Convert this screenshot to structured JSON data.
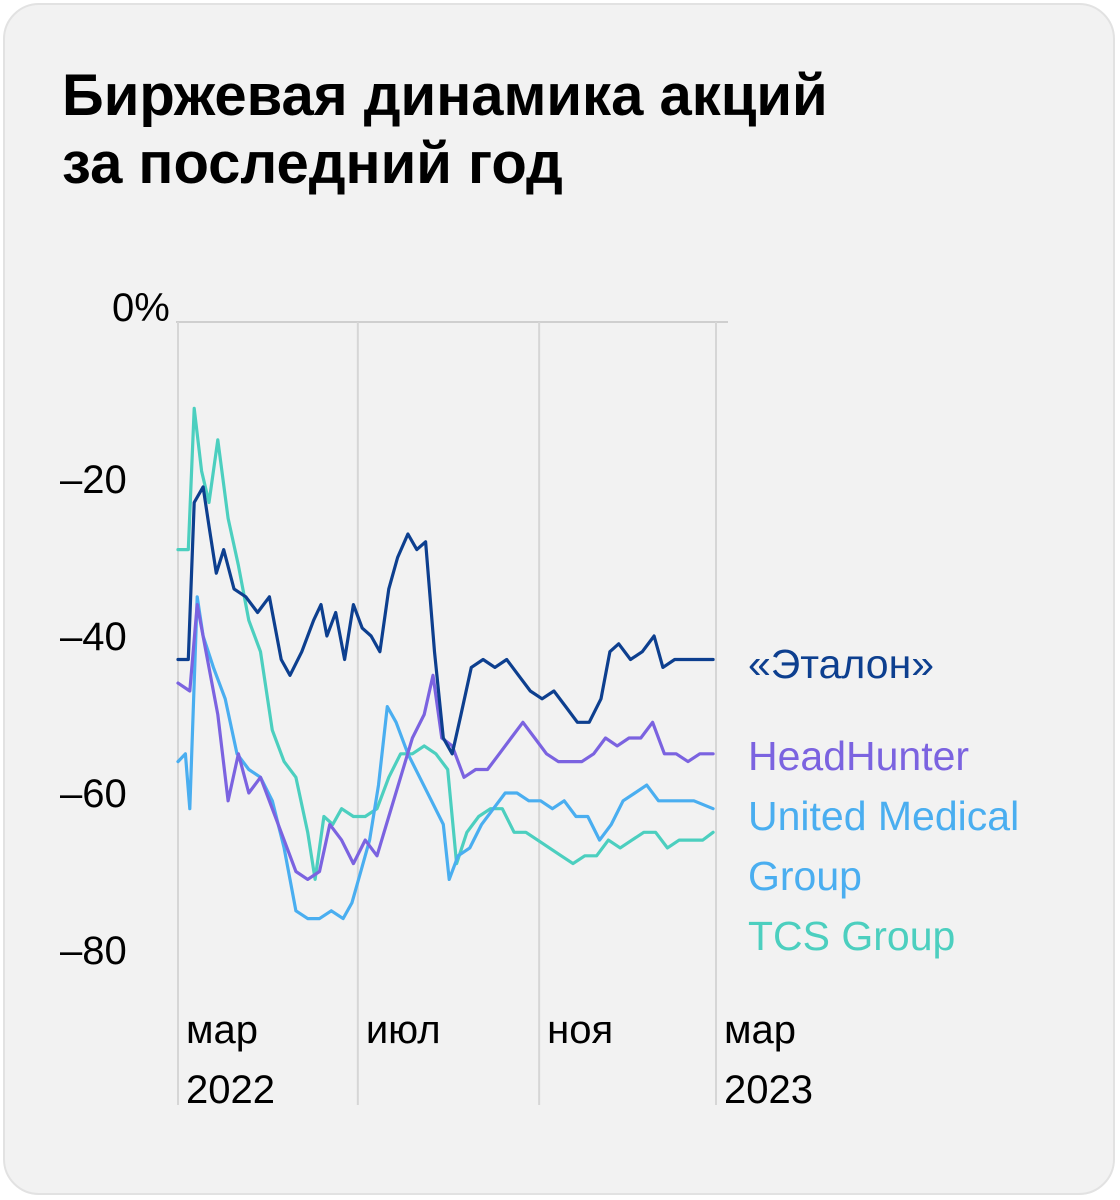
{
  "title": {
    "line1": "Биржевая динамика акций",
    "line2": "за последний год"
  },
  "chart_data": {
    "type": "line",
    "title": "Биржевая динамика акций за последний год",
    "ylabel": "",
    "xlabel": "",
    "ylim": [
      -90,
      0
    ],
    "y_ticks": [
      {
        "value": 0,
        "label": "0%"
      },
      {
        "value": -20,
        "label": "–20"
      },
      {
        "value": -40,
        "label": "–40"
      },
      {
        "value": -60,
        "label": "–60"
      },
      {
        "value": -80,
        "label": "–80"
      }
    ],
    "x_ticks": [
      {
        "date": "2022-03-01",
        "lines": [
          "мар",
          "2022"
        ]
      },
      {
        "date": "2022-07-01",
        "lines": [
          "июл",
          ""
        ]
      },
      {
        "date": "2022-11-01",
        "lines": [
          "ноя",
          ""
        ]
      },
      {
        "date": "2023-03-01",
        "lines": [
          "мар",
          "2023"
        ]
      }
    ],
    "grid": "vertical",
    "legend_position": "right, at end of lines",
    "series": [
      {
        "name": "«Эталон»",
        "legend_lines": [
          "«Эталон»"
        ],
        "color": "#0d3f8f",
        "points": [
          [
            "2022-03-01",
            -43
          ],
          [
            "2022-03-08",
            -43
          ],
          [
            "2022-03-12",
            -23
          ],
          [
            "2022-03-18",
            -21
          ],
          [
            "2022-03-22",
            -26
          ],
          [
            "2022-03-27",
            -32
          ],
          [
            "2022-04-01",
            -29
          ],
          [
            "2022-04-08",
            -34
          ],
          [
            "2022-04-16",
            -35
          ],
          [
            "2022-04-24",
            -37
          ],
          [
            "2022-05-02",
            -35
          ],
          [
            "2022-05-10",
            -43
          ],
          [
            "2022-05-16",
            -45
          ],
          [
            "2022-05-24",
            -42
          ],
          [
            "2022-06-01",
            -38
          ],
          [
            "2022-06-06",
            -36
          ],
          [
            "2022-06-10",
            -40
          ],
          [
            "2022-06-16",
            -37
          ],
          [
            "2022-06-22",
            -43
          ],
          [
            "2022-06-28",
            -36
          ],
          [
            "2022-07-04",
            -39
          ],
          [
            "2022-07-10",
            -40
          ],
          [
            "2022-07-16",
            -42
          ],
          [
            "2022-07-22",
            -34
          ],
          [
            "2022-07-28",
            -30
          ],
          [
            "2022-08-04",
            -27
          ],
          [
            "2022-08-10",
            -29
          ],
          [
            "2022-08-16",
            -28
          ],
          [
            "2022-08-22",
            -42
          ],
          [
            "2022-08-28",
            -53
          ],
          [
            "2022-09-03",
            -55
          ],
          [
            "2022-09-09",
            -50
          ],
          [
            "2022-09-16",
            -44
          ],
          [
            "2022-09-24",
            -43
          ],
          [
            "2022-10-02",
            -44
          ],
          [
            "2022-10-10",
            -43
          ],
          [
            "2022-10-18",
            -45
          ],
          [
            "2022-10-26",
            -47
          ],
          [
            "2022-11-03",
            -48
          ],
          [
            "2022-11-11",
            -47
          ],
          [
            "2022-11-19",
            -49
          ],
          [
            "2022-11-27",
            -51
          ],
          [
            "2022-12-05",
            -51
          ],
          [
            "2022-12-13",
            -48
          ],
          [
            "2022-12-19",
            -42
          ],
          [
            "2022-12-25",
            -41
          ],
          [
            "2023-01-02",
            -43
          ],
          [
            "2023-01-10",
            -42
          ],
          [
            "2023-01-18",
            -40
          ],
          [
            "2023-01-24",
            -44
          ],
          [
            "2023-02-01",
            -43
          ],
          [
            "2023-02-09",
            -43
          ],
          [
            "2023-02-17",
            -43
          ],
          [
            "2023-02-27",
            -43
          ]
        ]
      },
      {
        "name": "HeadHunter",
        "legend_lines": [
          "HeadHunter"
        ],
        "color": "#7b63e0",
        "points": [
          [
            "2022-03-01",
            -46
          ],
          [
            "2022-03-09",
            -47
          ],
          [
            "2022-03-14",
            -36
          ],
          [
            "2022-03-20",
            -42
          ],
          [
            "2022-03-28",
            -50
          ],
          [
            "2022-04-04",
            -61
          ],
          [
            "2022-04-11",
            -55
          ],
          [
            "2022-04-18",
            -60
          ],
          [
            "2022-04-26",
            -58
          ],
          [
            "2022-05-04",
            -62
          ],
          [
            "2022-05-12",
            -66
          ],
          [
            "2022-05-20",
            -70
          ],
          [
            "2022-05-28",
            -71
          ],
          [
            "2022-06-05",
            -70
          ],
          [
            "2022-06-12",
            -64
          ],
          [
            "2022-06-20",
            -66
          ],
          [
            "2022-06-28",
            -69
          ],
          [
            "2022-07-06",
            -66
          ],
          [
            "2022-07-14",
            -68
          ],
          [
            "2022-07-22",
            -63
          ],
          [
            "2022-07-30",
            -58
          ],
          [
            "2022-08-07",
            -53
          ],
          [
            "2022-08-15",
            -50
          ],
          [
            "2022-08-21",
            -45
          ],
          [
            "2022-08-27",
            -53
          ],
          [
            "2022-09-03",
            -54
          ],
          [
            "2022-09-11",
            -58
          ],
          [
            "2022-09-19",
            -57
          ],
          [
            "2022-09-27",
            -57
          ],
          [
            "2022-10-05",
            -55
          ],
          [
            "2022-10-13",
            -53
          ],
          [
            "2022-10-21",
            -51
          ],
          [
            "2022-10-29",
            -53
          ],
          [
            "2022-11-06",
            -55
          ],
          [
            "2022-11-14",
            -56
          ],
          [
            "2022-11-22",
            -56
          ],
          [
            "2022-11-30",
            -56
          ],
          [
            "2022-12-08",
            -55
          ],
          [
            "2022-12-16",
            -53
          ],
          [
            "2022-12-24",
            -54
          ],
          [
            "2023-01-01",
            -53
          ],
          [
            "2023-01-09",
            -53
          ],
          [
            "2023-01-17",
            -51
          ],
          [
            "2023-01-25",
            -55
          ],
          [
            "2023-02-02",
            -55
          ],
          [
            "2023-02-10",
            -56
          ],
          [
            "2023-02-18",
            -55
          ],
          [
            "2023-02-27",
            -55
          ]
        ]
      },
      {
        "name": "United Medical Group",
        "legend_lines": [
          "United Medical",
          "Group"
        ],
        "color": "#4aaef0",
        "points": [
          [
            "2022-03-01",
            -56
          ],
          [
            "2022-03-06",
            -55
          ],
          [
            "2022-03-09",
            -62
          ],
          [
            "2022-03-14",
            -35
          ],
          [
            "2022-03-18",
            -40
          ],
          [
            "2022-03-25",
            -44
          ],
          [
            "2022-04-02",
            -48
          ],
          [
            "2022-04-10",
            -55
          ],
          [
            "2022-04-18",
            -57
          ],
          [
            "2022-04-26",
            -58
          ],
          [
            "2022-05-04",
            -61
          ],
          [
            "2022-05-12",
            -67
          ],
          [
            "2022-05-20",
            -75
          ],
          [
            "2022-05-28",
            -76
          ],
          [
            "2022-06-05",
            -76
          ],
          [
            "2022-06-13",
            -75
          ],
          [
            "2022-06-21",
            -76
          ],
          [
            "2022-06-27",
            -74
          ],
          [
            "2022-07-03",
            -70
          ],
          [
            "2022-07-09",
            -66
          ],
          [
            "2022-07-15",
            -59
          ],
          [
            "2022-07-21",
            -49
          ],
          [
            "2022-07-27",
            -51
          ],
          [
            "2022-08-04",
            -55
          ],
          [
            "2022-08-12",
            -58
          ],
          [
            "2022-08-20",
            -61
          ],
          [
            "2022-08-28",
            -64
          ],
          [
            "2022-09-01",
            -71
          ],
          [
            "2022-09-07",
            -68
          ],
          [
            "2022-09-15",
            -67
          ],
          [
            "2022-09-23",
            -64
          ],
          [
            "2022-10-01",
            -62
          ],
          [
            "2022-10-09",
            -60
          ],
          [
            "2022-10-17",
            -60
          ],
          [
            "2022-10-25",
            -61
          ],
          [
            "2022-11-02",
            -61
          ],
          [
            "2022-11-10",
            -62
          ],
          [
            "2022-11-18",
            -61
          ],
          [
            "2022-11-26",
            -63
          ],
          [
            "2022-12-04",
            -63
          ],
          [
            "2022-12-12",
            -66
          ],
          [
            "2022-12-20",
            -64
          ],
          [
            "2022-12-28",
            -61
          ],
          [
            "2023-01-05",
            -60
          ],
          [
            "2023-01-13",
            -59
          ],
          [
            "2023-01-21",
            -61
          ],
          [
            "2023-01-29",
            -61
          ],
          [
            "2023-02-06",
            -61
          ],
          [
            "2023-02-14",
            -61
          ],
          [
            "2023-02-27",
            -62
          ]
        ]
      },
      {
        "name": "TCS Group",
        "legend_lines": [
          "TCS Group"
        ],
        "color": "#4ccfbf",
        "points": [
          [
            "2022-03-01",
            -29
          ],
          [
            "2022-03-08",
            -29
          ],
          [
            "2022-03-12",
            -11
          ],
          [
            "2022-03-17",
            -19
          ],
          [
            "2022-03-22",
            -23
          ],
          [
            "2022-03-28",
            -15
          ],
          [
            "2022-04-04",
            -25
          ],
          [
            "2022-04-11",
            -31
          ],
          [
            "2022-04-18",
            -38
          ],
          [
            "2022-04-26",
            -42
          ],
          [
            "2022-05-04",
            -52
          ],
          [
            "2022-05-12",
            -56
          ],
          [
            "2022-05-20",
            -58
          ],
          [
            "2022-05-28",
            -65
          ],
          [
            "2022-06-02",
            -71
          ],
          [
            "2022-06-08",
            -63
          ],
          [
            "2022-06-14",
            -64
          ],
          [
            "2022-06-20",
            -62
          ],
          [
            "2022-06-28",
            -63
          ],
          [
            "2022-07-06",
            -63
          ],
          [
            "2022-07-14",
            -62
          ],
          [
            "2022-07-22",
            -58
          ],
          [
            "2022-07-30",
            -55
          ],
          [
            "2022-08-07",
            -55
          ],
          [
            "2022-08-15",
            -54
          ],
          [
            "2022-08-23",
            -55
          ],
          [
            "2022-08-31",
            -57
          ],
          [
            "2022-09-06",
            -69
          ],
          [
            "2022-09-13",
            -65
          ],
          [
            "2022-09-21",
            -63
          ],
          [
            "2022-09-29",
            -62
          ],
          [
            "2022-10-07",
            -62
          ],
          [
            "2022-10-15",
            -65
          ],
          [
            "2022-10-23",
            -65
          ],
          [
            "2022-10-31",
            -66
          ],
          [
            "2022-11-08",
            -67
          ],
          [
            "2022-11-16",
            -68
          ],
          [
            "2022-11-24",
            -69
          ],
          [
            "2022-12-02",
            -68
          ],
          [
            "2022-12-10",
            -68
          ],
          [
            "2022-12-18",
            -66
          ],
          [
            "2022-12-26",
            -67
          ],
          [
            "2023-01-03",
            -66
          ],
          [
            "2023-01-11",
            -65
          ],
          [
            "2023-01-19",
            -65
          ],
          [
            "2023-01-27",
            -67
          ],
          [
            "2023-02-04",
            -66
          ],
          [
            "2023-02-12",
            -66
          ],
          [
            "2023-02-20",
            -66
          ],
          [
            "2023-02-27",
            -65
          ]
        ]
      }
    ]
  }
}
